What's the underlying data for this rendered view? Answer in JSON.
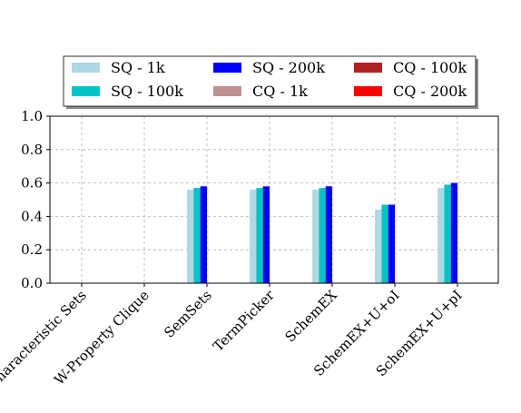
{
  "chart_data": {
    "type": "bar",
    "categories": [
      "Characteristic Sets",
      "W-Property Clique",
      "SemSets",
      "TermPicker",
      "SchemEX",
      "SchemEX+U+oI",
      "SchemEX+U+pI"
    ],
    "series": [
      {
        "name": "SQ - 1k",
        "color": "#add8e6",
        "values": [
          0,
          0,
          0.56,
          0.56,
          0.56,
          0.44,
          0.57
        ]
      },
      {
        "name": "SQ - 100k",
        "color": "#00c5c5",
        "values": [
          0,
          0,
          0.57,
          0.57,
          0.57,
          0.47,
          0.59
        ]
      },
      {
        "name": "SQ - 200k",
        "color": "#0000ff",
        "values": [
          0,
          0,
          0.58,
          0.58,
          0.58,
          0.47,
          0.6
        ]
      },
      {
        "name": "CQ - 1k",
        "color": "#c09090",
        "values": [
          0,
          0,
          0,
          0,
          0,
          0,
          0
        ]
      },
      {
        "name": "CQ - 100k",
        "color": "#b22222",
        "values": [
          0,
          0,
          0,
          0,
          0,
          0,
          0
        ]
      },
      {
        "name": "CQ - 200k",
        "color": "#ff0000",
        "values": [
          0,
          0,
          0,
          0,
          0,
          0,
          0
        ]
      }
    ],
    "legend_order": [
      "SQ - 1k",
      "SQ - 200k",
      "CQ - 100k",
      "SQ - 100k",
      "CQ - 1k",
      "CQ - 200k"
    ],
    "yticks": [
      "0.0",
      "0.2",
      "0.4",
      "0.6",
      "0.8",
      "1.0"
    ],
    "ylim": [
      0,
      1
    ],
    "grid": true,
    "legend_position": "top",
    "title": "",
    "xlabel": "",
    "ylabel": ""
  }
}
